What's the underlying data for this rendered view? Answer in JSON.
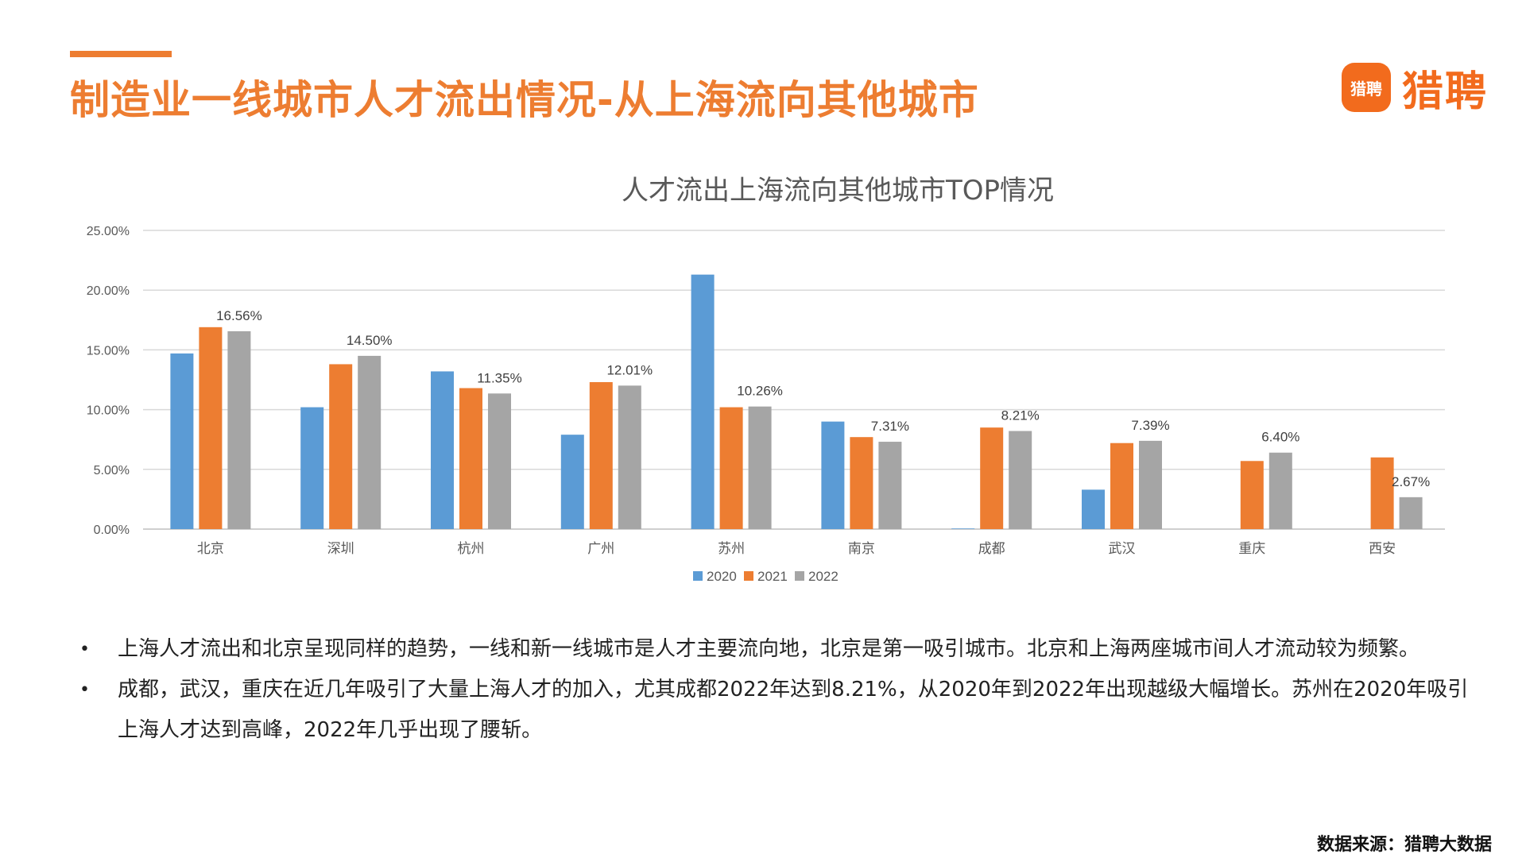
{
  "page": {
    "title": "制造业一线城市人才流出情况-从上海流向其他城市",
    "logo_icon_text": "猎聘",
    "logo_text": "猎聘",
    "source": "数据来源：猎聘大数据",
    "colors": {
      "accent": "#ED7D31"
    }
  },
  "bullets": [
    "上海人才流出和北京呈现同样的趋势，一线和新一线城市是人才主要流向地，北京是第一吸引城市。北京和上海两座城市间人才流动较为频繁。",
    "成都，武汉，重庆在近几年吸引了大量上海人才的加入，尤其成都2022年达到8.21%，从2020年到2022年出现越级大幅增长。苏州在2020年吸引上海人才达到高峰，2022年几乎出现了腰斩。"
  ],
  "chart_data": {
    "type": "bar",
    "title": "人才流出上海流向其他城市TOP情况",
    "xlabel": "",
    "ylabel": "",
    "ylim": [
      0,
      25
    ],
    "y_ticks": [
      "0.00%",
      "5.00%",
      "10.00%",
      "15.00%",
      "20.00%",
      "25.00%"
    ],
    "y_tick_values": [
      0,
      5,
      10,
      15,
      20,
      25
    ],
    "grid": true,
    "legend_position": "bottom",
    "categories": [
      "北京",
      "深圳",
      "杭州",
      "广州",
      "苏州",
      "南京",
      "成都",
      "武汉",
      "重庆",
      "西安"
    ],
    "series": [
      {
        "name": "2020",
        "color": "#5B9BD5",
        "values": [
          14.7,
          10.2,
          13.2,
          7.9,
          21.3,
          9.0,
          0.05,
          3.3,
          0,
          0
        ]
      },
      {
        "name": "2021",
        "color": "#ED7D31",
        "values": [
          16.9,
          13.8,
          11.8,
          12.3,
          10.2,
          7.7,
          8.5,
          7.2,
          5.7,
          6.0
        ]
      },
      {
        "name": "2022",
        "color": "#A5A5A5",
        "values": [
          16.56,
          14.5,
          11.35,
          12.01,
          10.26,
          7.31,
          8.21,
          7.39,
          6.4,
          2.67
        ]
      }
    ],
    "data_labels": [
      "16.56%",
      "14.50%",
      "11.35%",
      "12.01%",
      "10.26%",
      "7.31%",
      "8.21%",
      "7.39%",
      "6.40%",
      "2.67%"
    ]
  }
}
